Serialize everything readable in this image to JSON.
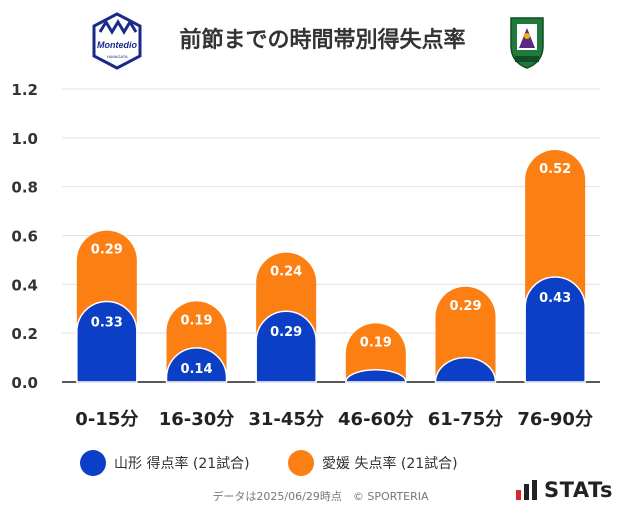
{
  "title": "前節までの時間帯別得失点率",
  "home_logo_text": "Montedio",
  "home_logo_subtext": "YAMAGATA",
  "colors": {
    "home": "#0b3fc6",
    "away": "#fb7f12",
    "grid": "#e2e2e2",
    "axis": "#222222"
  },
  "chart_data": {
    "type": "bar",
    "stacked": true,
    "categories": [
      "0-15分",
      "16-30分",
      "31-45分",
      "46-60分",
      "61-75分",
      "76-90分"
    ],
    "series": [
      {
        "name": "山形 得点率 (21試合)",
        "values": [
          0.33,
          0.14,
          0.29,
          0.05,
          0.1,
          0.43
        ],
        "labels": [
          "0.33",
          "0.14",
          "0.29",
          "",
          "",
          "0.43"
        ]
      },
      {
        "name": "愛媛 失点率 (21試合)",
        "values": [
          0.29,
          0.19,
          0.24,
          0.19,
          0.29,
          0.52
        ],
        "labels": [
          "0.29",
          "0.19",
          "0.24",
          "0.19",
          "0.29",
          "0.52"
        ]
      }
    ],
    "yticks": [
      "0.0",
      "0.2",
      "0.4",
      "0.6",
      "0.8",
      "1.0",
      "1.2"
    ],
    "ylim": [
      0,
      1.2
    ],
    "grid": true,
    "legend": "bottom"
  },
  "footer": "データは2025/06/29時点　© SPORTERIA",
  "brand": "STATs"
}
